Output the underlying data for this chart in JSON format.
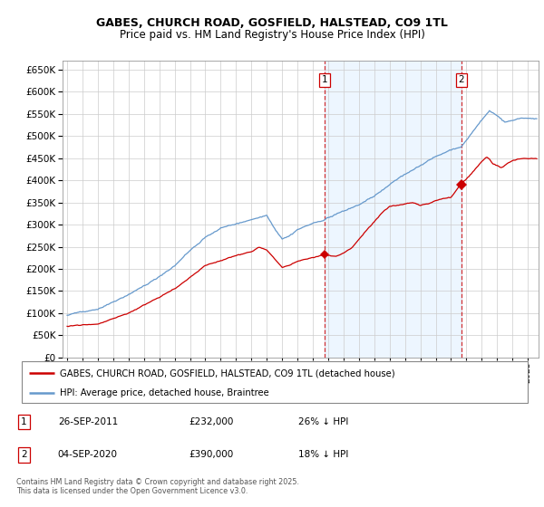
{
  "title": "GABES, CHURCH ROAD, GOSFIELD, HALSTEAD, CO9 1TL",
  "subtitle": "Price paid vs. HM Land Registry's House Price Index (HPI)",
  "legend_red": "GABES, CHURCH ROAD, GOSFIELD, HALSTEAD, CO9 1TL (detached house)",
  "legend_blue": "HPI: Average price, detached house, Braintree",
  "footnote": "Contains HM Land Registry data © Crown copyright and database right 2025.\nThis data is licensed under the Open Government Licence v3.0.",
  "annotation1_date": "26-SEP-2011",
  "annotation1_price": "£232,000",
  "annotation1_hpi": "26% ↓ HPI",
  "annotation2_date": "04-SEP-2020",
  "annotation2_price": "£390,000",
  "annotation2_hpi": "18% ↓ HPI",
  "vline1_x": 2011.75,
  "vline2_x": 2020.67,
  "marker1_x": 2011.75,
  "marker1_y": 232000,
  "marker2_x": 2020.67,
  "marker2_y": 390000,
  "ylim": [
    0,
    670000
  ],
  "xlim_start": 1994.7,
  "xlim_end": 2025.7,
  "red_color": "#cc0000",
  "blue_color": "#6699cc",
  "shade_color": "#ddeeff",
  "grid_color": "#cccccc",
  "title_fontsize": 9,
  "subtitle_fontsize": 8.5
}
